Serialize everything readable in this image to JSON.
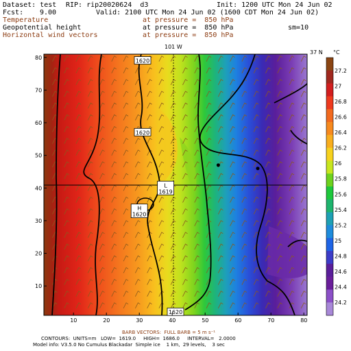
{
  "header": {
    "dataset": "Dataset: test",
    "rip": "RIP: rip20020624  d3",
    "init": "Init: 1200 UTC Mon 24 Jun 02",
    "fcst_label": "Fcst:",
    "fcst_value": "9.00",
    "valid": "Valid: 2100 UTC Mon 24 Jun 02 (1600 CDT Mon 24 Jun 02)",
    "fields": [
      {
        "name": "Temperature",
        "pressure": "at pressure =  850 hPa",
        "color": "#8b3a0f"
      },
      {
        "name": "Geopotential height",
        "pressure": "at pressure =  850 hPa",
        "color": "#000000"
      },
      {
        "name": "Horizontal wind vectors",
        "pressure": "at pressure =  850 hPa",
        "color": "#8b3a0f"
      }
    ],
    "sm": "sm=10"
  },
  "map": {
    "lon_label": "101 W",
    "lat_label": "37 N",
    "x_ticks": [
      "10",
      "20",
      "30",
      "40",
      "50",
      "60",
      "70",
      "80"
    ],
    "y_ticks": [
      "10",
      "20",
      "30",
      "40",
      "50",
      "60",
      "70",
      "80"
    ],
    "contour_labels": [
      {
        "text": "1620",
        "gx": 31,
        "gy": 79
      },
      {
        "text": "1620",
        "gx": 31,
        "gy": 57
      },
      {
        "text": "1620",
        "gx": 41,
        "gy": 2
      }
    ],
    "low_label": {
      "letter": "L",
      "value": "1619",
      "gx": 38,
      "gy": 40
    },
    "high_label": {
      "letter": "H",
      "value": "1620",
      "gx": 30,
      "gy": 33
    },
    "dots": [
      {
        "gx": 54,
        "gy": 47
      },
      {
        "gx": 66,
        "gy": 46
      }
    ]
  },
  "colorbar": {
    "unit": "°C",
    "labels": [
      "27.2",
      "27",
      "26.8",
      "26.6",
      "26.4",
      "26.2",
      "26",
      "25.8",
      "25.6",
      "25.4",
      "25.2",
      "25",
      "24.8",
      "24.6",
      "24.4",
      "24.2"
    ],
    "colors": [
      "#8b4513",
      "#a0281e",
      "#d21e1e",
      "#ee3a1e",
      "#f26a1e",
      "#f78a1e",
      "#f9ae1e",
      "#f7d21e",
      "#c8e61e",
      "#6ed21e",
      "#1ec83c",
      "#1eb46e",
      "#1ea0b4",
      "#1e8cdc",
      "#1e64e6",
      "#3c3cc8",
      "#5a1e9a",
      "#6a1e9a",
      "#8c50c8",
      "#a888d8"
    ]
  },
  "footer": {
    "barb_vectors": "BARB VECTORS:  FULL BARB = 5 m s⁻¹",
    "contours": "CONTOURS:  UNITS=m   LOW=  1619.0     HIGH=  1686.0     INTERVAL=   2.0000",
    "model_info": "Model info: V3.5.0 No Cumulus Blackadar  Simple ice    1 km,  29 levels,    3 sec"
  }
}
